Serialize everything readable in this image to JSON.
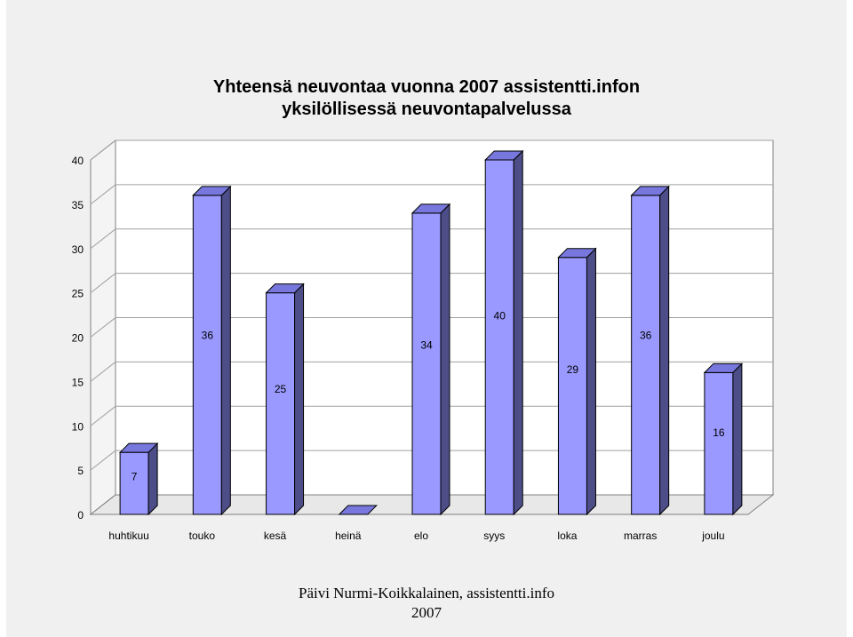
{
  "chart_data": {
    "type": "bar",
    "title_line1": "Yhteensä neuvontaa vuonna 2007 assistentti.infon",
    "title_line2": "yksilöllisessä neuvontapalvelussa",
    "categories": [
      "huhtikuu",
      "touko",
      "kesä",
      "heinä",
      "elo",
      "syys",
      "loka",
      "marras",
      "joulu"
    ],
    "values": [
      7,
      36,
      25,
      0,
      34,
      40,
      29,
      36,
      16
    ],
    "data_labels": [
      "7",
      "36",
      "25",
      "",
      "34",
      "40",
      "29",
      "36",
      "16"
    ],
    "ylim": [
      0,
      40
    ],
    "yticks": [
      0,
      5,
      10,
      15,
      20,
      25,
      30,
      35,
      40
    ],
    "grid": true,
    "colors": {
      "bar_front": "#9999ff",
      "bar_top": "#7777dd",
      "bar_side": "#4d4d88",
      "wall": "#ffffff",
      "gridline": "#a0a0a0"
    }
  },
  "footer": {
    "line1": "Päivi Nurmi-Koikkalainen, assistentti.info",
    "line2": "2007"
  }
}
